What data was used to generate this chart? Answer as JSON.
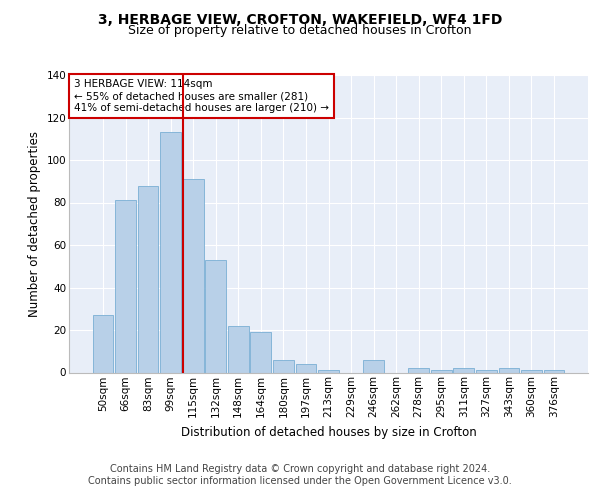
{
  "title": "3, HERBAGE VIEW, CROFTON, WAKEFIELD, WF4 1FD",
  "subtitle": "Size of property relative to detached houses in Crofton",
  "xlabel": "Distribution of detached houses by size in Crofton",
  "ylabel": "Number of detached properties",
  "bar_labels": [
    "50sqm",
    "66sqm",
    "83sqm",
    "99sqm",
    "115sqm",
    "132sqm",
    "148sqm",
    "164sqm",
    "180sqm",
    "197sqm",
    "213sqm",
    "229sqm",
    "246sqm",
    "262sqm",
    "278sqm",
    "295sqm",
    "311sqm",
    "327sqm",
    "343sqm",
    "360sqm",
    "376sqm"
  ],
  "bar_values": [
    27,
    81,
    88,
    113,
    91,
    53,
    22,
    19,
    6,
    4,
    1,
    0,
    6,
    0,
    2,
    1,
    2,
    1,
    2,
    1,
    1
  ],
  "bar_color": "#b8d0e8",
  "bar_edge_color": "#7aafd4",
  "background_color": "#e8eef8",
  "grid_color": "#ffffff",
  "red_line_index": 4,
  "red_line_color": "#cc0000",
  "annotation_text": "3 HERBAGE VIEW: 114sqm\n← 55% of detached houses are smaller (281)\n41% of semi-detached houses are larger (210) →",
  "annotation_box_color": "#cc0000",
  "ylim": [
    0,
    140
  ],
  "yticks": [
    0,
    20,
    40,
    60,
    80,
    100,
    120,
    140
  ],
  "footer_line1": "Contains HM Land Registry data © Crown copyright and database right 2024.",
  "footer_line2": "Contains public sector information licensed under the Open Government Licence v3.0.",
  "title_fontsize": 10,
  "subtitle_fontsize": 9,
  "axis_label_fontsize": 8.5,
  "tick_fontsize": 7.5,
  "footer_fontsize": 7
}
